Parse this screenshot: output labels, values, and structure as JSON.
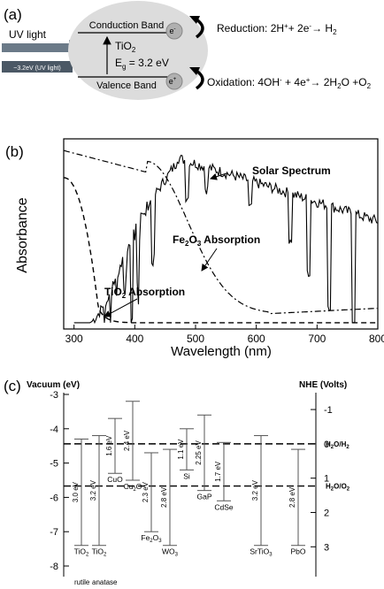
{
  "panel_a": {
    "label": "(a)",
    "uv_light": "UV light",
    "uv_energy": "~3.2eV (UV light)",
    "conduction_band": "Conduction Band",
    "valence_band": "Valence Band",
    "material": "TiO",
    "material_sub": "2",
    "gap_prefix": "E",
    "gap_sub": "g",
    "gap_value": " = 3.2 eV",
    "electron": "e",
    "electron_sup": "-",
    "hole": "e",
    "hole_sup": "+",
    "reduction": {
      "a": "Reduction: 2H",
      "b": "+",
      "c": "+ 2e",
      "d": "-",
      "e": "→ H",
      "f": "2"
    },
    "oxidation": {
      "a": "Oxidation: 4OH",
      "b": "-",
      "c": " + 4e",
      "d": "+",
      "e": "→ 2H",
      "f": "2",
      "g": "O +O",
      "h": "2"
    }
  },
  "panel_b": {
    "label": "(b)",
    "ylabel": "Absorbance",
    "xlabel": "Wavelength (nm)",
    "xticks": [
      "300",
      "400",
      "500",
      "600",
      "700",
      "800"
    ],
    "solar_label": "Solar Spectrum",
    "fe_label": "Fe",
    "fe_sub1": "2",
    "fe_mid": "O",
    "fe_sub2": "3",
    "fe_rest": " Absorption",
    "ti_label": "TiO",
    "ti_sub": "2",
    "ti_rest": " Absorption"
  },
  "panel_c": {
    "label": "(c)",
    "left_axis_title": "Vacuum (eV)",
    "right_axis_title": "NHE (Volts)",
    "left_ticks": [
      "-3",
      "-4",
      "-5",
      "-6",
      "-7",
      "-8"
    ],
    "right_ticks": [
      "-1",
      "0",
      "1",
      "2",
      "3"
    ],
    "h2_label": {
      "a": "H",
      "b": "2",
      "c": "O/H",
      "d": "2"
    },
    "o2_label": {
      "a": "H",
      "b": "2",
      "c": "O/O",
      "d": "2"
    },
    "materials": [
      {
        "name": "TiO",
        "sub": "2",
        "gap": "3.0 eV"
      },
      {
        "name": "TiO",
        "sub": "2",
        "gap": "3.2 eV"
      },
      {
        "name": "CuO",
        "sub": "",
        "gap": "1.6 eV"
      },
      {
        "name": "Cu",
        "sub": "2",
        "post": "O",
        "gap": "2.4 eV"
      },
      {
        "name": "Fe",
        "sub": "2",
        "post": "O",
        "sub2": "3",
        "gap": "2.3 eV"
      },
      {
        "name": "WO",
        "sub": "3",
        "gap": "2.8 eV"
      },
      {
        "name": "Si",
        "sub": "",
        "gap": "1.1 eV"
      },
      {
        "name": "GaP",
        "sub": "",
        "gap": "2.25 eV"
      },
      {
        "name": "CdSe",
        "sub": "",
        "gap": "1.7 eV"
      },
      {
        "name": "SrTiO",
        "sub": "3",
        "gap": "3.2 eV"
      },
      {
        "name": "PbO",
        "sub": "",
        "gap": "2.8 eV"
      }
    ],
    "rutile": "rutile",
    "anatase": "anatase",
    "band_edges": [
      {
        "cb": -4.3,
        "vb": -7.4
      },
      {
        "cb": -4.2,
        "vb": -7.4
      },
      {
        "cb": -3.7,
        "vb": -5.3
      },
      {
        "cb": -3.2,
        "vb": -5.5
      },
      {
        "cb": -4.7,
        "vb": -7.0
      },
      {
        "cb": -4.6,
        "vb": -7.4
      },
      {
        "cb": -4.0,
        "vb": -5.2
      },
      {
        "cb": -3.6,
        "vb": -5.8
      },
      {
        "cb": -4.4,
        "vb": -6.1
      },
      {
        "cb": -4.2,
        "vb": -7.4
      },
      {
        "cb": -4.6,
        "vb": -7.4
      }
    ],
    "h2_level": -4.44,
    "o2_level": -5.67
  }
}
